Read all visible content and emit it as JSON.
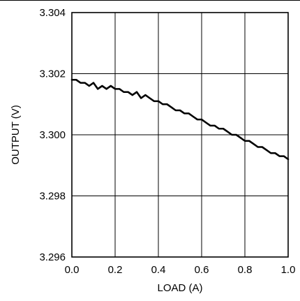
{
  "chart_data": {
    "type": "line",
    "title": "",
    "xlabel": "LOAD (A)",
    "ylabel": "OUTPUT (V)",
    "xlim": [
      0.0,
      1.0
    ],
    "ylim": [
      3.296,
      3.304
    ],
    "x_ticks": [
      "0.0",
      "0.2",
      "0.4",
      "0.6",
      "0.8",
      "1.0"
    ],
    "y_ticks": [
      "3.304",
      "3.302",
      "3.300",
      "3.298",
      "3.296"
    ],
    "grid": true,
    "legend": "none",
    "series": [
      {
        "x": [
          0.0,
          0.02,
          0.04,
          0.06,
          0.08,
          0.1,
          0.12,
          0.14,
          0.16,
          0.18,
          0.2,
          0.22,
          0.24,
          0.26,
          0.28,
          0.3,
          0.32,
          0.34,
          0.36,
          0.38,
          0.4,
          0.42,
          0.44,
          0.46,
          0.48,
          0.5,
          0.52,
          0.54,
          0.56,
          0.58,
          0.6,
          0.62,
          0.64,
          0.66,
          0.68,
          0.7,
          0.72,
          0.74,
          0.76,
          0.78,
          0.8,
          0.82,
          0.84,
          0.86,
          0.88,
          0.9,
          0.92,
          0.94,
          0.96,
          0.98,
          1.0
        ],
        "y": [
          3.3018,
          3.3018,
          3.3017,
          3.3017,
          3.3016,
          3.3017,
          3.3015,
          3.3016,
          3.3015,
          3.3016,
          3.3015,
          3.3015,
          3.3014,
          3.3014,
          3.3013,
          3.3014,
          3.3012,
          3.3013,
          3.3012,
          3.3011,
          3.3011,
          3.301,
          3.301,
          3.3009,
          3.3008,
          3.3008,
          3.3007,
          3.3007,
          3.3006,
          3.3005,
          3.3005,
          3.3004,
          3.3003,
          3.3003,
          3.3002,
          3.3002,
          3.3001,
          3.3,
          3.3,
          3.2999,
          3.2998,
          3.2998,
          3.2997,
          3.2996,
          3.2996,
          3.2995,
          3.2994,
          3.2994,
          3.2993,
          3.2993,
          3.2992
        ],
        "color": "#000000"
      }
    ]
  }
}
